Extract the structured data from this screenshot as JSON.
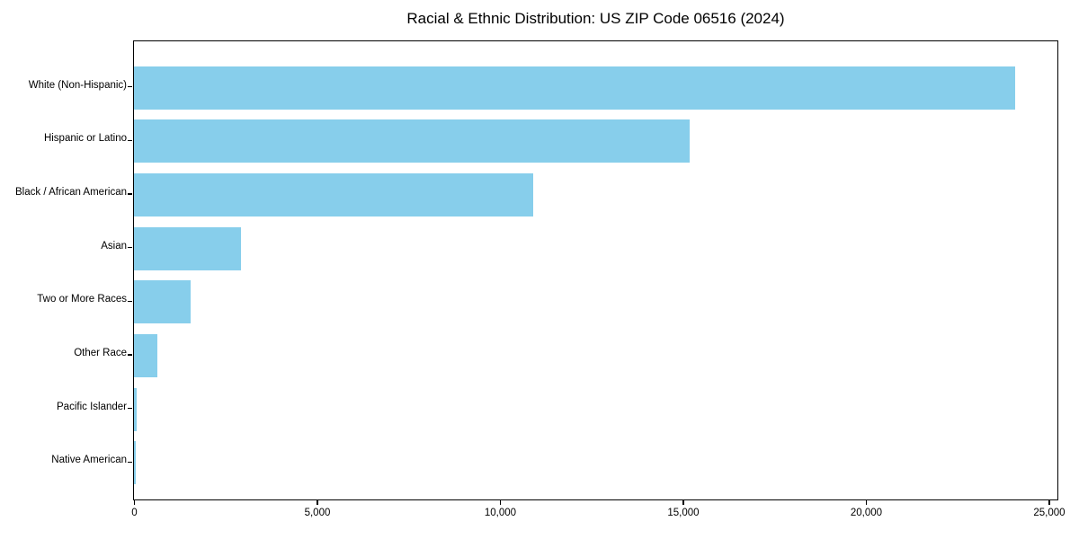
{
  "figure": {
    "background": "#ffffff",
    "spine_color": "#000000",
    "text_color": "#000000"
  },
  "chart_data": {
    "type": "bar",
    "orientation": "horizontal",
    "title": "Racial & Ethnic Distribution: US ZIP Code 06516 (2024)",
    "xlabel": "",
    "ylabel": "",
    "categories": [
      "White (Non-Hispanic)",
      "Hispanic or Latino",
      "Black / African American",
      "Asian",
      "Two or More Races",
      "Other Race",
      "Pacific Islander",
      "Native American"
    ],
    "values": [
      24080,
      15180,
      10910,
      2920,
      1550,
      650,
      75,
      60
    ],
    "bar_color": "#87CEEB",
    "xlim": [
      0,
      25210
    ],
    "xticks": [
      0,
      5000,
      10000,
      15000,
      20000,
      25000
    ],
    "xtick_labels": [
      "0",
      "5,000",
      "10,000",
      "15,000",
      "20,000",
      "25,000"
    ],
    "grid": false,
    "legend": null
  }
}
